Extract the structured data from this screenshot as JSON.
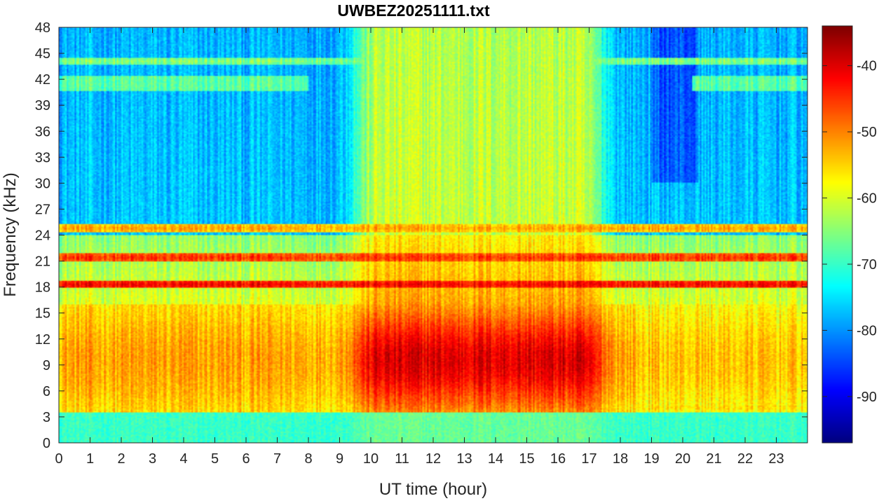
{
  "chart_data": {
    "type": "heatmap",
    "title": "UWBEZ20251111.txt",
    "xlabel": "UT time (hour)",
    "ylabel": "Frequency (kHz)",
    "xlim": [
      0,
      24
    ],
    "ylim": [
      0,
      48
    ],
    "x_ticks": [
      0,
      1,
      2,
      3,
      4,
      5,
      6,
      7,
      8,
      9,
      10,
      11,
      12,
      13,
      14,
      15,
      16,
      17,
      18,
      19,
      20,
      21,
      22,
      23
    ],
    "y_ticks": [
      0,
      3,
      6,
      9,
      12,
      15,
      18,
      21,
      24,
      27,
      30,
      33,
      36,
      39,
      42,
      45,
      48
    ],
    "colorbar": {
      "colormap": "jet",
      "range": [
        -97,
        -34
      ],
      "ticks": [
        -90,
        -80,
        -70,
        -60,
        -50,
        -40
      ]
    },
    "narrowband_lines_khz": [
      {
        "freq": 18.3,
        "level_db": -42
      },
      {
        "freq": 21.4,
        "level_db": -45
      },
      {
        "freq": 24.8,
        "level_db": -52
      },
      {
        "freq": 44.1,
        "level_db": -65
      }
    ],
    "levels_summary": [
      {
        "region": "daytime 10-17 UT, 4-15 kHz",
        "level_db": -45
      },
      {
        "region": "night 0-9 UT, 6-15 kHz",
        "level_db": -53
      },
      {
        "region": "night 0-8 and 20-24 UT, 27-48 kHz",
        "level_db": -76
      },
      {
        "region": "0-3 kHz",
        "level_db": -70
      }
    ]
  }
}
